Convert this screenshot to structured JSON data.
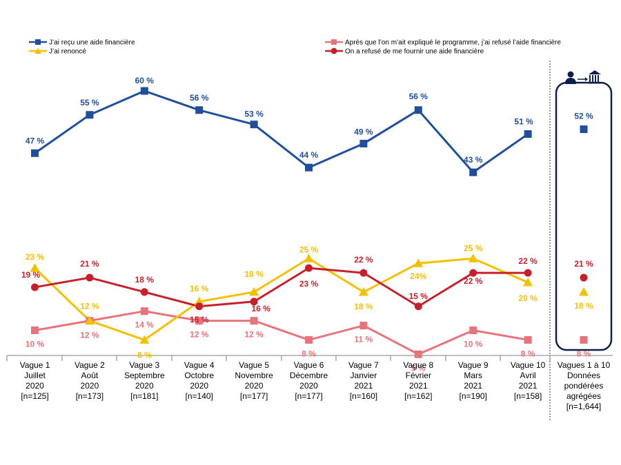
{
  "chart_data": {
    "type": "line",
    "title": "",
    "xlabel": "",
    "ylabel": "",
    "ylim": [
      0,
      70
    ],
    "categories": [
      [
        "Vague 1",
        "Juillet",
        "2020",
        "[n=125]"
      ],
      [
        "Vague 2",
        "Août",
        "2020",
        "[n=173]"
      ],
      [
        "Vague 3",
        "Septembre",
        "2020",
        "[n=181]"
      ],
      [
        "Vague 4",
        "Octobre",
        "2020",
        "[n=140]"
      ],
      [
        "Vague 5",
        "Novembre",
        "2020",
        "[n=177]"
      ],
      [
        "Vague 6",
        "Décembre",
        "2020",
        "[n=177]"
      ],
      [
        "Vague 7",
        "Janvier",
        "2021",
        "[n=160]"
      ],
      [
        "Vague 8",
        "Février",
        "2021",
        "[n=162]"
      ],
      [
        "Vague 9",
        "Mars",
        "2021",
        "[n=190]"
      ],
      [
        "Vague 10",
        "Avril",
        "2021",
        "[n=158]"
      ]
    ],
    "aggregate_category": [
      "Vagues 1 à 10",
      "Données",
      "pondérées",
      "agrégées",
      "[n=1,644]"
    ],
    "series": [
      {
        "name": "J'ai reçu une aide financière",
        "color": "#1f4e9c",
        "marker": "square",
        "values": [
          47,
          55,
          60,
          56,
          53,
          44,
          49,
          56,
          43,
          51
        ],
        "labels": [
          "47 %",
          "55 %",
          "60 %",
          "56 %",
          "53 %",
          "44 %",
          "49 %",
          "56 %",
          "43 %",
          "51 %"
        ],
        "aggregate": 52,
        "aggregate_label": "52 %"
      },
      {
        "name": "Après que l'on m'ait expliqué le programme, j'ai refusé l'aide financière",
        "color": "#e8737a",
        "marker": "square",
        "values": [
          10,
          12,
          14,
          12,
          12,
          8,
          11,
          5,
          10,
          8
        ],
        "labels": [
          "10 %",
          "12 %",
          "14 %",
          "12 %",
          "12 %",
          "8 %",
          "11 %",
          "5 %",
          "10 %",
          "8 %"
        ],
        "aggregate": 8,
        "aggregate_label": "8 %"
      },
      {
        "name": "J'ai renoncé",
        "color": "#f5c000",
        "marker": "triangle",
        "values": [
          23,
          12,
          8,
          16,
          18,
          25,
          18,
          24,
          25,
          20
        ],
        "labels": [
          "23 %",
          "12 %",
          "8 %",
          "16 %",
          "18 %",
          "25 %",
          "18 %",
          "24%",
          "25 %",
          "20 %"
        ],
        "aggregate": 18,
        "aggregate_label": "18 %"
      },
      {
        "name": "On a refusé de me fournir une aide financière",
        "color": "#c8202a",
        "marker": "circle",
        "values": [
          19,
          21,
          18,
          15,
          16,
          23,
          22,
          15,
          22,
          22
        ],
        "labels": [
          "19 %",
          "21 %",
          "18 %",
          "15 %",
          "16 %",
          "23 %",
          "22 %",
          "15 %",
          "22 %",
          "22 %"
        ],
        "aggregate": 21,
        "aggregate_label": "21 %"
      }
    ],
    "legend": [
      "J’ai reçu une aide financière",
      "J’ai renoncé",
      "Après que l’on m’ait expliqué le programme, j’ai refusé l’aide financière",
      "On a refusé de me fournir une aide financière"
    ],
    "aggregate_icon": "person-to-bank-icon"
  }
}
